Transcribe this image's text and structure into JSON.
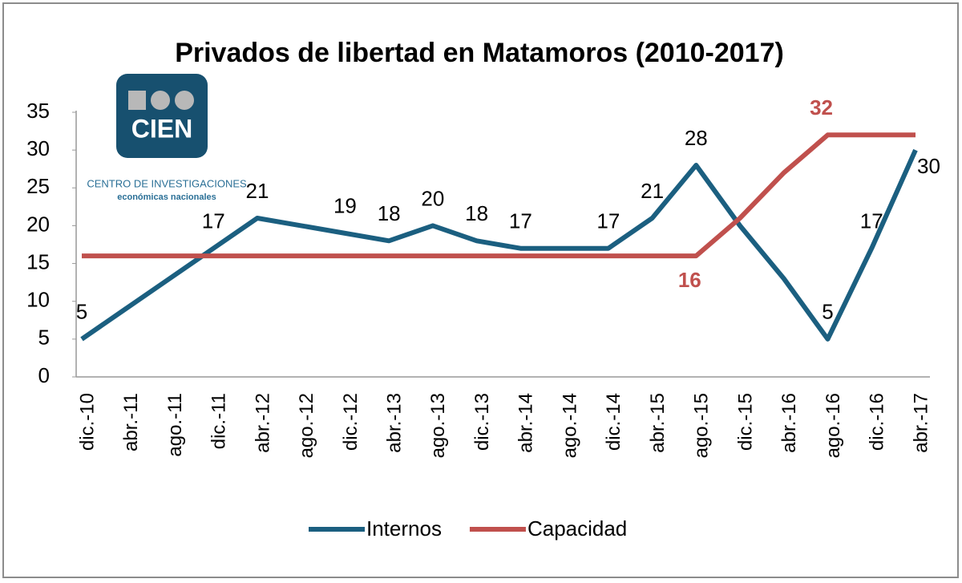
{
  "chart_data": {
    "type": "line",
    "title": "Privados de libertad en Matamoros (2010-2017)",
    "categories": [
      "dic.-10",
      "abr.-11",
      "ago.-11",
      "dic.-11",
      "abr.-12",
      "ago.-12",
      "dic.-12",
      "abr.-13",
      "ago.-13",
      "dic.-13",
      "abr.-14",
      "ago.-14",
      "dic.-14",
      "abr.-15",
      "ago.-15",
      "dic.-15",
      "abr.-16",
      "ago.-16",
      "dic.-16",
      "abr.-17"
    ],
    "series": [
      {
        "name": "Internos",
        "color": "#1b5f80",
        "values": [
          5,
          9,
          13,
          17,
          21,
          20,
          19,
          18,
          20,
          18,
          17,
          17,
          17,
          21,
          28,
          20,
          13,
          5,
          17,
          30
        ],
        "value_labels": [
          "5",
          null,
          null,
          "17",
          "21",
          null,
          "19",
          "18",
          "20",
          "18",
          "17",
          null,
          "17",
          "21",
          "28",
          null,
          null,
          "5",
          "17",
          "30"
        ]
      },
      {
        "name": "Capacidad",
        "color": "#c0504d",
        "values": [
          16,
          16,
          16,
          16,
          16,
          16,
          16,
          16,
          16,
          16,
          16,
          16,
          16,
          16,
          16,
          21,
          27,
          32,
          32,
          32
        ],
        "value_labels": [
          null,
          null,
          null,
          null,
          null,
          null,
          null,
          null,
          null,
          null,
          null,
          null,
          null,
          null,
          "16",
          null,
          null,
          "32",
          null,
          null
        ]
      }
    ],
    "ylim": [
      0,
      35
    ],
    "yticks": [
      0,
      5,
      10,
      15,
      20,
      25,
      30,
      35
    ],
    "grid": false,
    "legend": "bottom"
  },
  "logo": {
    "mark": "CIEN",
    "line1": "CENTRO DE INVESTIGACIONES",
    "line2": "económicas nacionales"
  }
}
